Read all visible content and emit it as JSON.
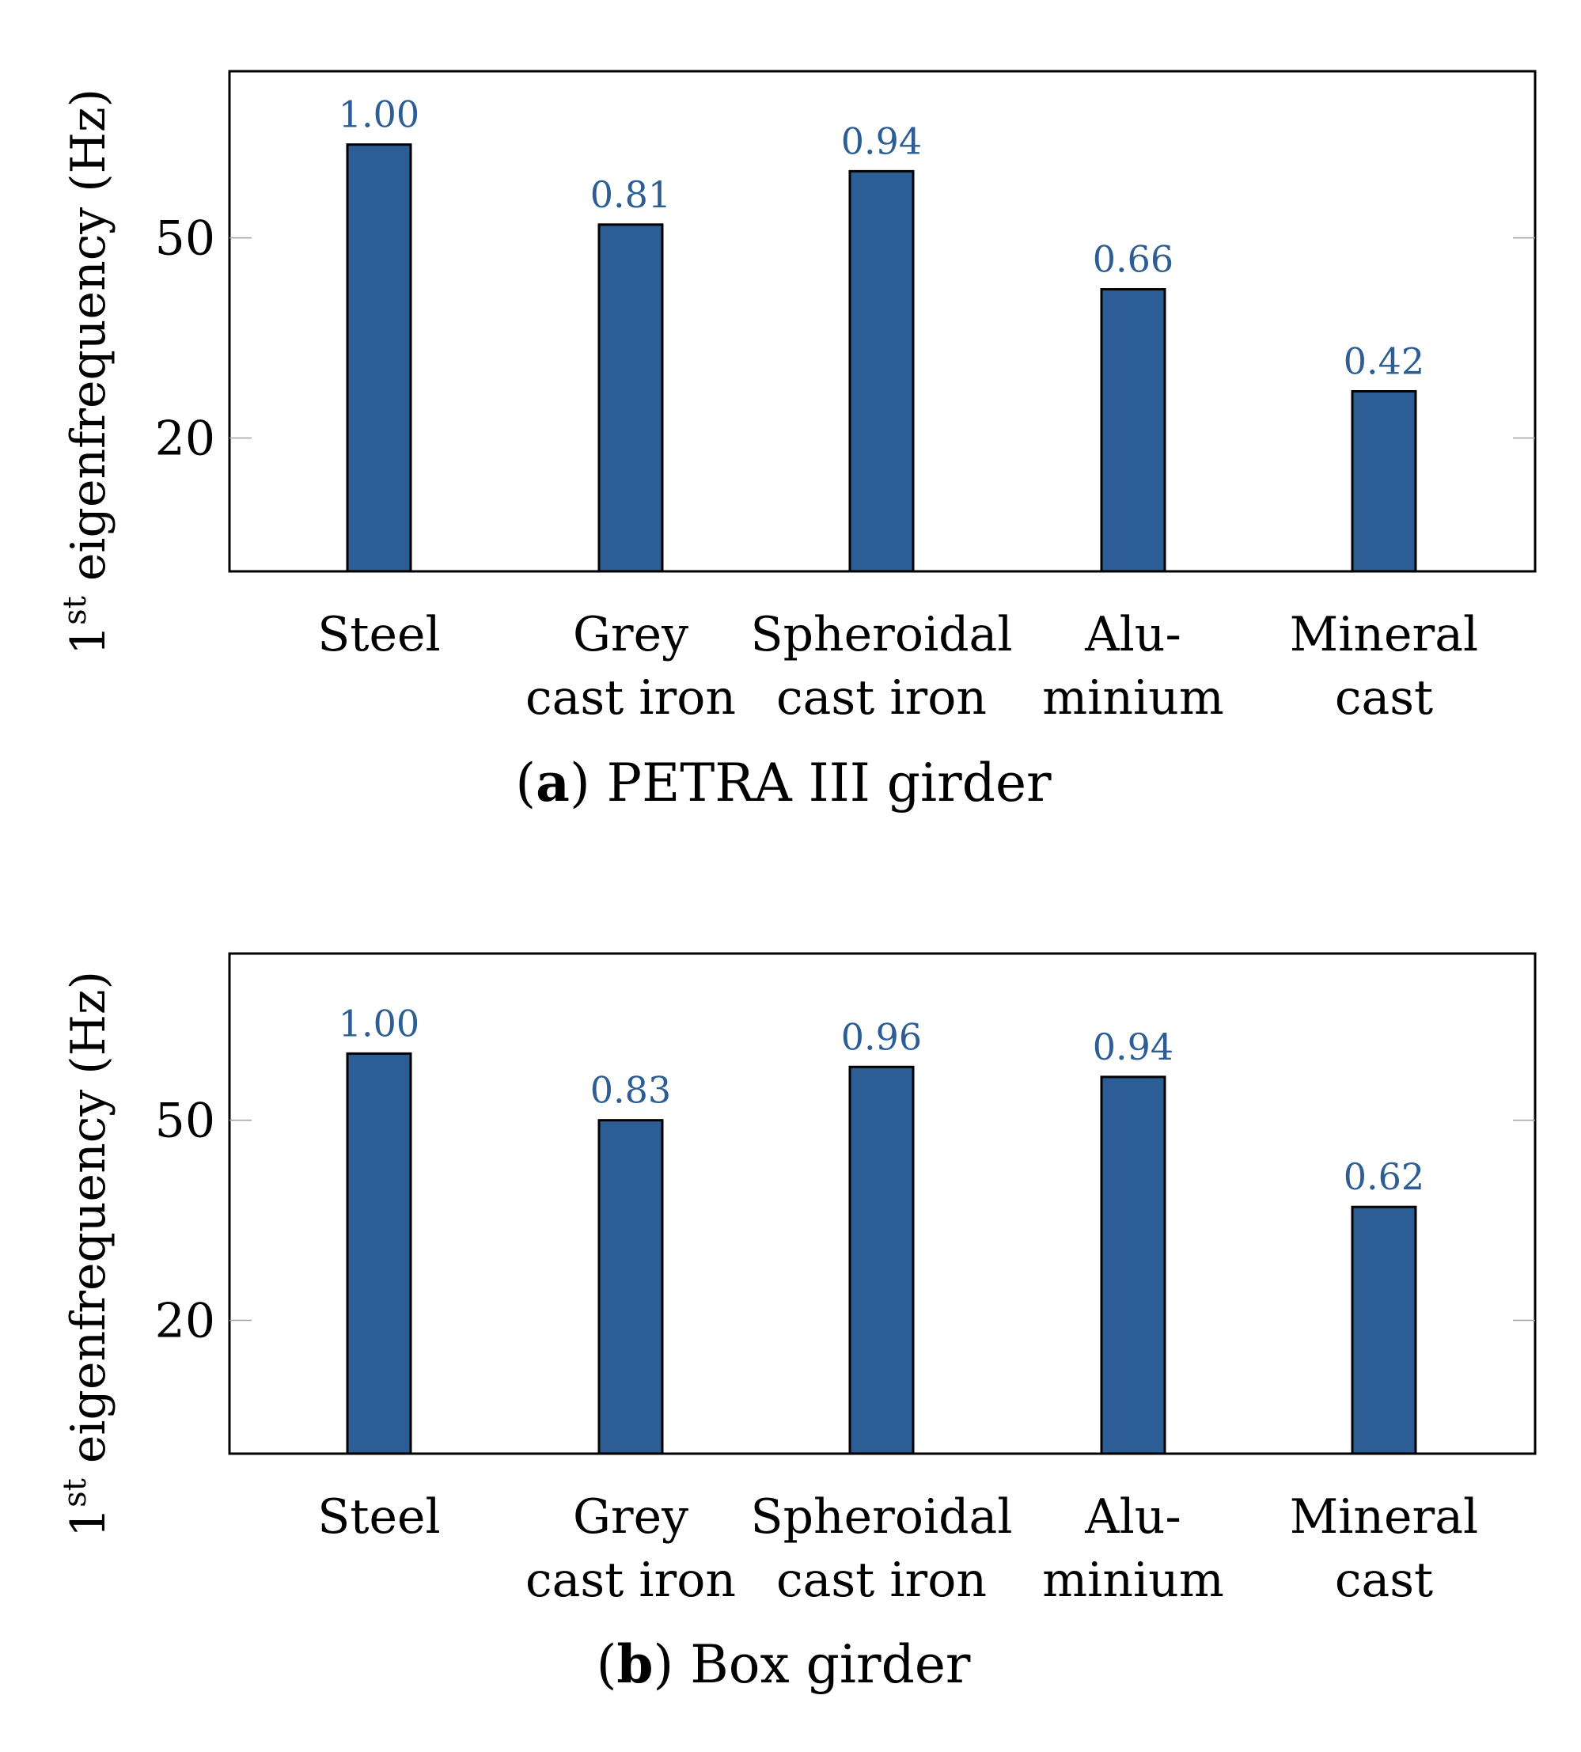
{
  "bar_color": "#2d5d95",
  "label_color": "#2d5d95",
  "chart_data": [
    {
      "type": "bar",
      "caption_letter": "a",
      "caption_text": "PETRA III girder",
      "ylabel_prefix": "1",
      "ylabel_superscript": "st",
      "ylabel_text": "eigenfrequency (Hz)",
      "categories": [
        {
          "line1": "Steel",
          "line2": ""
        },
        {
          "line1": "Grey",
          "line2": "cast iron"
        },
        {
          "line1": "Spheroidal",
          "line2": "cast iron"
        },
        {
          "line1": "Alu-",
          "line2": "minium"
        },
        {
          "line1": "Mineral",
          "line2": "cast"
        }
      ],
      "values": [
        64,
        52,
        60,
        42.3,
        27
      ],
      "value_labels": [
        "1.00",
        "0.81",
        "0.94",
        "0.66",
        "0.42"
      ],
      "yticks": [
        20,
        50
      ],
      "ylim": [
        0,
        75
      ]
    },
    {
      "type": "bar",
      "caption_letter": "b",
      "caption_text": "Box girder",
      "ylabel_prefix": "1",
      "ylabel_superscript": "st",
      "ylabel_text": "eigenfrequency (Hz)",
      "categories": [
        {
          "line1": "Steel",
          "line2": ""
        },
        {
          "line1": "Grey",
          "line2": "cast iron"
        },
        {
          "line1": "Spheroidal",
          "line2": "cast iron"
        },
        {
          "line1": "Alu-",
          "line2": "minium"
        },
        {
          "line1": "Mineral",
          "line2": "cast"
        }
      ],
      "values": [
        60,
        50,
        58,
        56.5,
        37
      ],
      "value_labels": [
        "1.00",
        "0.83",
        "0.96",
        "0.94",
        "0.62"
      ],
      "yticks": [
        20,
        50
      ],
      "ylim": [
        0,
        75
      ]
    }
  ]
}
